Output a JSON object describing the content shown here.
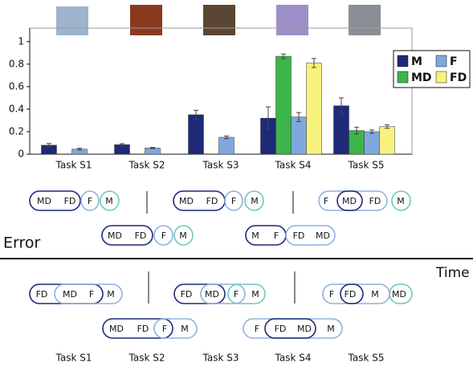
{
  "chart_data": {
    "type": "bar",
    "categories": [
      "Task S1",
      "Task S2",
      "Task S3",
      "Task S4",
      "Task S5"
    ],
    "series": [
      {
        "name": "M",
        "color": "#1e2a78",
        "values": [
          0.08,
          0.085,
          0.35,
          0.32,
          0.43
        ],
        "errors": [
          0.015,
          0.008,
          0.04,
          0.1,
          0.07
        ]
      },
      {
        "name": "MD",
        "color": "#3cb54a",
        "values": [
          null,
          null,
          null,
          0.87,
          0.21
        ],
        "errors": [
          null,
          null,
          null,
          0.02,
          0.03
        ]
      },
      {
        "name": "F",
        "color": "#7fa9de",
        "values": [
          0.045,
          0.055,
          0.15,
          0.33,
          0.2
        ],
        "errors": [
          0.008,
          0.005,
          0.012,
          0.04,
          0.015
        ]
      },
      {
        "name": "FD",
        "color": "#f6f27c",
        "values": [
          null,
          null,
          null,
          0.81,
          0.245
        ],
        "errors": [
          null,
          null,
          null,
          0.04,
          0.015
        ]
      }
    ],
    "ylim": [
      0,
      1.12
    ],
    "yticks": [
      0,
      0.2,
      0.4,
      0.6,
      0.8,
      1
    ],
    "legend": "upper right"
  },
  "diagram": {
    "error_label": "Error",
    "time_label": "Time",
    "error_groups": [
      {
        "items": [
          "MD",
          "FD",
          "F",
          "M"
        ]
      },
      {
        "items": [
          "MD",
          "FD",
          "F",
          "M"
        ]
      },
      {
        "items": [
          "MD",
          "FD",
          "F",
          "M"
        ]
      },
      {
        "items": [
          "M",
          "F",
          "FD",
          "MD"
        ]
      },
      {
        "items": [
          "F",
          "MD",
          "FD",
          "M"
        ]
      }
    ],
    "time_groups": [
      {
        "items": [
          "FD",
          "MD",
          "F",
          "M"
        ]
      },
      {
        "items": [
          "MD",
          "FD",
          "F",
          "M"
        ]
      },
      {
        "items": [
          "FD",
          "MD",
          "F",
          "M"
        ]
      },
      {
        "items": [
          "F",
          "FD",
          "MD",
          "M"
        ]
      },
      {
        "items": [
          "F",
          "FD",
          "M",
          "MD"
        ]
      }
    ]
  }
}
